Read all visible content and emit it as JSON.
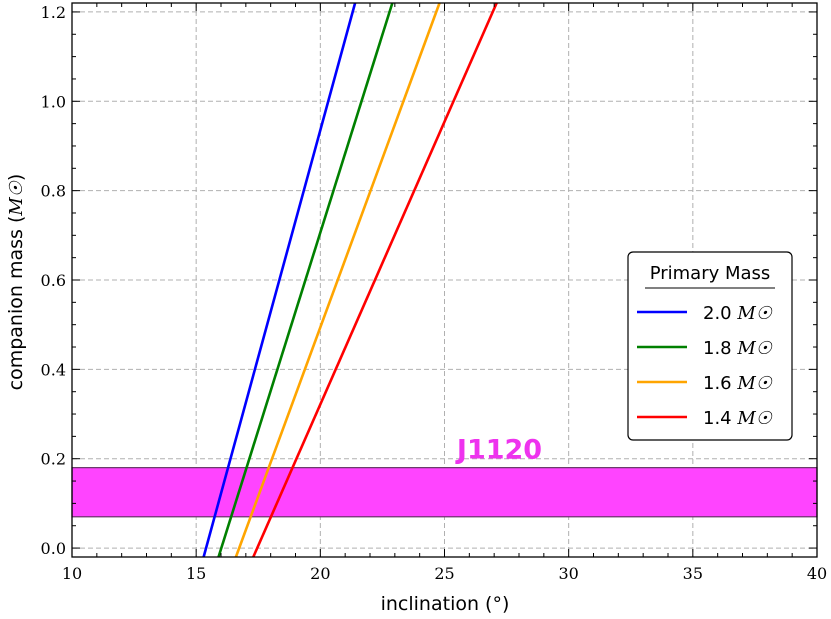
{
  "chart_data": {
    "type": "line",
    "xlabel": "inclination (°)",
    "ylabel": "companion mass (",
    "ylabel_unit": "M☉",
    "xlim": [
      10,
      40
    ],
    "ylim": [
      -0.02,
      1.22
    ],
    "x_ticks": [
      "10",
      "15",
      "20",
      "25",
      "30",
      "35",
      "40"
    ],
    "y_ticks": [
      "0.0",
      "0.2",
      "0.4",
      "0.6",
      "0.8",
      "1.0",
      "1.2"
    ],
    "grid": true,
    "legend": {
      "title": "Primary Mass",
      "placement": "center-right",
      "unit": "M☉",
      "entries": [
        "2.0",
        "1.8",
        "1.6",
        "1.4"
      ]
    },
    "series": [
      {
        "name": "2.0 M☉",
        "color": "#0000ff",
        "x": [
          15.3,
          21.4
        ],
        "y": [
          -0.02,
          1.22
        ]
      },
      {
        "name": "1.8 M☉",
        "color": "#008000",
        "x": [
          15.9,
          22.9
        ],
        "y": [
          -0.02,
          1.22
        ]
      },
      {
        "name": "1.6 M☉",
        "color": "#ffa500",
        "x": [
          16.6,
          24.8
        ],
        "y": [
          -0.02,
          1.22
        ]
      },
      {
        "name": "1.4 M☉",
        "color": "#ff0000",
        "x": [
          17.3,
          27.1
        ],
        "y": [
          -0.02,
          1.22
        ]
      }
    ],
    "band": {
      "label": "J1120",
      "color": "#ff44ff",
      "label_color": "#ee33ee",
      "ymin": 0.07,
      "ymax": 0.18
    }
  }
}
